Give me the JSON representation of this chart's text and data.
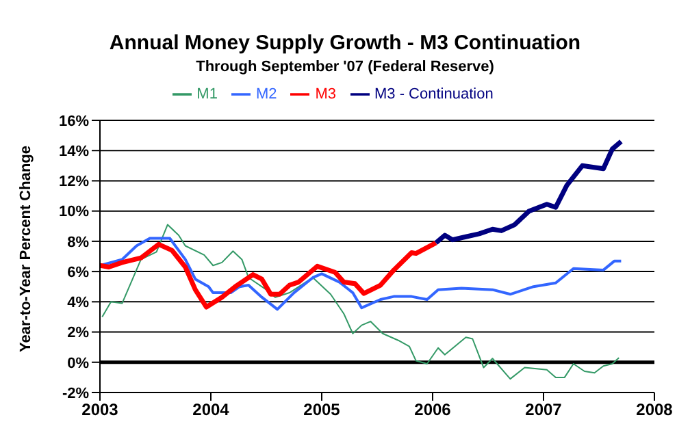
{
  "chart_data": {
    "type": "line",
    "title": "Annual Money Supply Growth - M3 Continuation",
    "subtitle": "Through September '07  (Federal Reserve)",
    "ylabel": "Year-to-Year Percent Change",
    "xlim": [
      2003,
      2008
    ],
    "xticks": [
      2003,
      2004,
      2005,
      2006,
      2007,
      2008
    ],
    "ylim": [
      -2,
      16
    ],
    "yticks": [
      {
        "value": -2,
        "label": "-2%"
      },
      {
        "value": 0,
        "label": "0%"
      },
      {
        "value": 2,
        "label": "2%"
      },
      {
        "value": 4,
        "label": "4%"
      },
      {
        "value": 6,
        "label": "6%"
      },
      {
        "value": 8,
        "label": "8%"
      },
      {
        "value": 10,
        "label": "10%"
      },
      {
        "value": 12,
        "label": "12%"
      },
      {
        "value": 14,
        "label": "14%"
      },
      {
        "value": 16,
        "label": "16%"
      }
    ],
    "grid": "y",
    "legend": "top",
    "marker": "none",
    "line_style": "solid",
    "ref_lines": [
      {
        "axis": "y",
        "value": 0,
        "color": "#000000"
      }
    ],
    "series": [
      {
        "name": "M1",
        "color": "#339966",
        "x": [
          2003.02,
          2003.1,
          2003.2,
          2003.37,
          2003.51,
          2003.61,
          2003.71,
          2003.77,
          2003.94,
          2004.02,
          2004.1,
          2004.2,
          2004.28,
          2004.34,
          2004.5,
          2004.58,
          2004.71,
          2004.92,
          2005.08,
          2005.2,
          2005.28,
          2005.36,
          2005.44,
          2005.55,
          2005.69,
          2005.79,
          2005.85,
          2005.95,
          2006.05,
          2006.11,
          2006.3,
          2006.36,
          2006.46,
          2006.54,
          2006.7,
          2006.83,
          2007.03,
          2007.11,
          2007.19,
          2007.27,
          2007.37,
          2007.46,
          2007.54,
          2007.62,
          2007.68
        ],
        "values": [
          3.0,
          4.0,
          3.9,
          6.8,
          7.3,
          9.1,
          8.4,
          7.7,
          7.1,
          6.4,
          6.6,
          7.35,
          6.8,
          5.6,
          4.8,
          4.3,
          4.6,
          5.6,
          4.5,
          3.2,
          1.9,
          2.45,
          2.7,
          1.9,
          1.45,
          1.05,
          0.1,
          -0.1,
          0.95,
          0.5,
          1.65,
          1.55,
          -0.35,
          0.25,
          -1.1,
          -0.35,
          -0.5,
          -1.0,
          -1.0,
          -0.1,
          -0.6,
          -0.7,
          -0.25,
          -0.1,
          0.3
        ]
      },
      {
        "name": "M2",
        "color": "#3366ff",
        "x": [
          2003.0,
          2003.2,
          2003.33,
          2003.45,
          2003.63,
          2003.77,
          2003.86,
          2003.98,
          2004.02,
          2004.18,
          2004.26,
          2004.34,
          2004.46,
          2004.6,
          2004.75,
          2004.92,
          2005.0,
          2005.16,
          2005.28,
          2005.36,
          2005.53,
          2005.65,
          2005.81,
          2005.95,
          2006.05,
          2006.26,
          2006.54,
          2006.7,
          2006.91,
          2007.11,
          2007.27,
          2007.54,
          2007.64,
          2007.7
        ],
        "values": [
          6.4,
          6.8,
          7.7,
          8.2,
          8.2,
          6.8,
          5.5,
          5.0,
          4.6,
          4.6,
          5.0,
          5.1,
          4.3,
          3.5,
          4.6,
          5.6,
          5.85,
          5.3,
          4.6,
          3.6,
          4.15,
          4.35,
          4.35,
          4.15,
          4.8,
          4.9,
          4.8,
          4.5,
          5.0,
          5.25,
          6.2,
          6.1,
          6.7,
          6.7
        ]
      },
      {
        "name": "M3",
        "color": "#ff0000",
        "x": [
          2003.0,
          2003.08,
          2003.2,
          2003.37,
          2003.53,
          2003.65,
          2003.77,
          2003.86,
          2003.96,
          2004.1,
          2004.22,
          2004.38,
          2004.46,
          2004.54,
          2004.62,
          2004.71,
          2004.79,
          2004.96,
          2005.12,
          2005.2,
          2005.3,
          2005.38,
          2005.53,
          2005.65,
          2005.81,
          2005.85,
          2006.03
        ],
        "values": [
          6.4,
          6.3,
          6.6,
          6.9,
          7.8,
          7.4,
          6.3,
          4.8,
          3.65,
          4.3,
          5.0,
          5.8,
          5.5,
          4.5,
          4.5,
          5.1,
          5.3,
          6.35,
          5.95,
          5.3,
          5.2,
          4.55,
          5.1,
          6.1,
          7.25,
          7.2,
          7.9
        ]
      },
      {
        "name": "M3 - Continuation",
        "color": "#000080",
        "x": [
          2006.03,
          2006.11,
          2006.18,
          2006.3,
          2006.42,
          2006.54,
          2006.62,
          2006.74,
          2006.87,
          2007.03,
          2007.11,
          2007.21,
          2007.35,
          2007.54,
          2007.62,
          2007.7
        ],
        "values": [
          7.9,
          8.4,
          8.1,
          8.3,
          8.5,
          8.8,
          8.7,
          9.1,
          10.0,
          10.45,
          10.25,
          11.7,
          13.0,
          12.8,
          14.1,
          14.6
        ]
      }
    ]
  }
}
